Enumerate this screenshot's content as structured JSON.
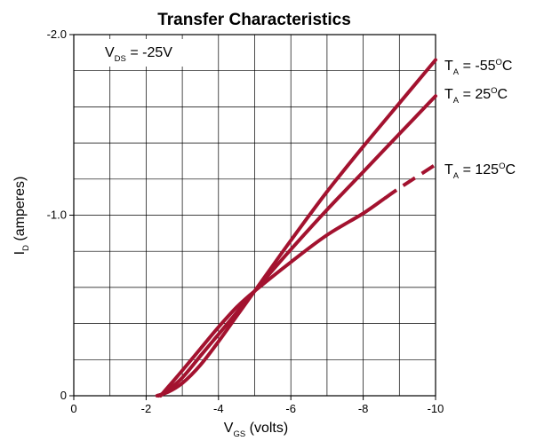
{
  "chart_data": {
    "type": "line",
    "title": "Transfer Characteristics",
    "xlabel": {
      "main": "V",
      "sub": "GS",
      "suffix": " (volts)"
    },
    "ylabel": {
      "main": "I",
      "sub": "D",
      "suffix": " (amperes)"
    },
    "xlim": [
      0,
      -10
    ],
    "ylim": [
      0,
      -2.0
    ],
    "x_ticks": [
      {
        "value": 0,
        "label": "0"
      },
      {
        "value": -2,
        "label": "-2"
      },
      {
        "value": -4,
        "label": "-4"
      },
      {
        "value": -6,
        "label": "-6"
      },
      {
        "value": -8,
        "label": "-8"
      },
      {
        "value": -10,
        "label": "-10"
      }
    ],
    "y_ticks": [
      {
        "value": 0,
        "label": "0"
      },
      {
        "value": -1.0,
        "label": "-1.0"
      },
      {
        "value": -2.0,
        "label": "-2.0"
      }
    ],
    "grid": true,
    "grid_x_step": 1,
    "grid_y_step": 0.2,
    "series_color": "#a3122f",
    "annotation": {
      "main": "V",
      "sub": "DS",
      "suffix": " = -25V"
    },
    "series": [
      {
        "label": {
          "main": "T",
          "sub": "A",
          "suffix": " = -55",
          "degree": "O",
          "unit": "C"
        },
        "x": [
          -2.3,
          -2.6,
          -3.0,
          -3.5,
          -4.0,
          -4.5,
          -5.0,
          -6.0,
          -7.0,
          -8.0,
          -9.0,
          -10.0
        ],
        "y": [
          0,
          -0.02,
          -0.07,
          -0.17,
          -0.3,
          -0.44,
          -0.58,
          -0.86,
          -1.13,
          -1.38,
          -1.62,
          -1.86
        ],
        "dashed_from_x": null
      },
      {
        "label": {
          "main": "T",
          "sub": "A",
          "suffix": " = 25",
          "degree": "O",
          "unit": "C"
        },
        "x": [
          -2.35,
          -2.6,
          -3.0,
          -3.5,
          -4.0,
          -4.5,
          -5.0,
          -6.0,
          -7.0,
          -8.0,
          -9.0,
          -10.0
        ],
        "y": [
          0,
          -0.03,
          -0.1,
          -0.22,
          -0.34,
          -0.46,
          -0.58,
          -0.81,
          -1.03,
          -1.24,
          -1.45,
          -1.66
        ],
        "dashed_from_x": null
      },
      {
        "label": {
          "main": "T",
          "sub": "A",
          "suffix": " = 125",
          "degree": "O",
          "unit": "C"
        },
        "x": [
          -2.4,
          -2.7,
          -3.0,
          -3.5,
          -4.0,
          -4.5,
          -5.0,
          -6.0,
          -7.0,
          -8.0,
          -9.0,
          -10.0
        ],
        "y": [
          0,
          -0.07,
          -0.14,
          -0.26,
          -0.38,
          -0.49,
          -0.58,
          -0.74,
          -0.89,
          -1.01,
          -1.15,
          -1.28
        ],
        "dashed_from_x": -8.6
      }
    ]
  }
}
